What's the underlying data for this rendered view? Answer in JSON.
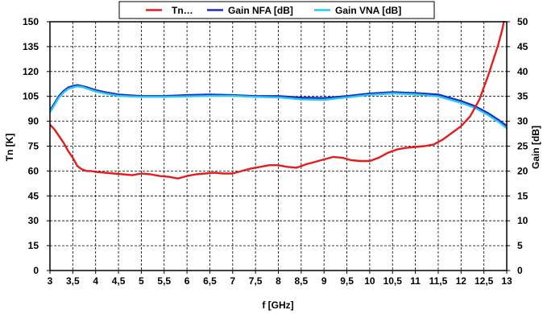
{
  "chart_data": {
    "type": "line",
    "legend": {
      "placement": "top",
      "entries": [
        {
          "label": "Tn…",
          "color": "#e51c1c"
        },
        {
          "label": "Gain NFA [dB]",
          "color": "#1a2bc9"
        },
        {
          "label": "Gain VNA [dB]",
          "color": "#29c8ee"
        }
      ]
    },
    "xlabel": "f [GHz]",
    "ylabel_left": "Tn [K]",
    "ylabel_right": "Gain [dB]",
    "xlim": [
      3,
      13
    ],
    "ylim_left": [
      0,
      150
    ],
    "ylim_right": [
      0,
      50
    ],
    "grid": true,
    "xticks": [
      "3",
      "3,5",
      "4",
      "4,5",
      "5",
      "5,5",
      "6",
      "6,5",
      "7",
      "7,5",
      "8",
      "8,5",
      "9",
      "9,5",
      "10",
      "10,5",
      "11",
      "11,5",
      "12",
      "12,5",
      "13"
    ],
    "yticks_left": [
      "0",
      "15",
      "30",
      "45",
      "60",
      "75",
      "90",
      "105",
      "120",
      "135",
      "150"
    ],
    "yticks_right": [
      "0",
      "5",
      "10",
      "15",
      "20",
      "25",
      "30",
      "35",
      "40",
      "45",
      "50"
    ],
    "series": [
      {
        "name": "Tn…",
        "axis": "left",
        "color": "#e51c1c",
        "x": [
          3,
          3.1,
          3.2,
          3.3,
          3.4,
          3.5,
          3.6,
          3.7,
          3.8,
          3.9,
          4,
          4.2,
          4.4,
          4.6,
          4.8,
          5,
          5.2,
          5.4,
          5.6,
          5.8,
          6,
          6.2,
          6.4,
          6.6,
          6.8,
          7,
          7.2,
          7.4,
          7.6,
          7.8,
          8,
          8.2,
          8.4,
          8.6,
          8.8,
          9,
          9.2,
          9.4,
          9.6,
          9.8,
          10,
          10.2,
          10.4,
          10.6,
          10.8,
          11,
          11.2,
          11.4,
          11.6,
          11.8,
          12,
          12.2,
          12.4,
          12.6,
          12.8,
          12.9,
          12.95
        ],
        "values": [
          88,
          85,
          81,
          77,
          72,
          68,
          63,
          61,
          60,
          60,
          59.5,
          59,
          58.5,
          58,
          57.5,
          58.5,
          58,
          57,
          56.5,
          55.5,
          57,
          58,
          58.5,
          59,
          58.5,
          58.5,
          60,
          61.5,
          62.5,
          63.5,
          63.5,
          62.5,
          62,
          64,
          65.5,
          67,
          68.5,
          68,
          66.5,
          66,
          66,
          68,
          71,
          73,
          74,
          74.5,
          75,
          76,
          79,
          83,
          87,
          93,
          103,
          118,
          135,
          145,
          152
        ]
      },
      {
        "name": "Gain NFA [dB]",
        "axis": "right",
        "color": "#1a2bc9",
        "x": [
          3,
          3.1,
          3.2,
          3.3,
          3.4,
          3.5,
          3.6,
          3.7,
          3.8,
          4,
          4.2,
          4.5,
          5,
          5.5,
          6,
          6.5,
          7,
          7.5,
          8,
          8.5,
          9,
          9.5,
          10,
          10.5,
          11,
          11.5,
          12,
          12.3,
          12.6,
          12.8,
          13
        ],
        "values": [
          32,
          33.5,
          35,
          36,
          36.7,
          37,
          37.2,
          37,
          36.8,
          36.2,
          35.8,
          35.3,
          35,
          35,
          35.2,
          35.3,
          35.2,
          35,
          35,
          34.7,
          34.6,
          35,
          35.5,
          35.8,
          35.6,
          35.3,
          34,
          33,
          31.5,
          30.3,
          29
        ]
      },
      {
        "name": "Gain VNA [dB]",
        "axis": "right",
        "color": "#29c8ee",
        "x": [
          3,
          3.1,
          3.2,
          3.3,
          3.4,
          3.5,
          3.6,
          3.7,
          3.8,
          4,
          4.2,
          4.5,
          5,
          5.5,
          6,
          6.5,
          7,
          7.5,
          8,
          8.5,
          9,
          9.5,
          10,
          10.5,
          11,
          11.5,
          12,
          12.3,
          12.6,
          12.8,
          13
        ],
        "values": [
          31.8,
          33.3,
          34.8,
          35.8,
          36.5,
          36.8,
          37,
          36.9,
          36.6,
          36,
          35.6,
          35.1,
          34.9,
          34.9,
          35,
          35.1,
          35.1,
          34.9,
          34.8,
          34.4,
          34.3,
          34.8,
          35.3,
          35.6,
          35.4,
          35,
          33.7,
          32.7,
          31.2,
          30,
          28.6
        ]
      }
    ]
  }
}
